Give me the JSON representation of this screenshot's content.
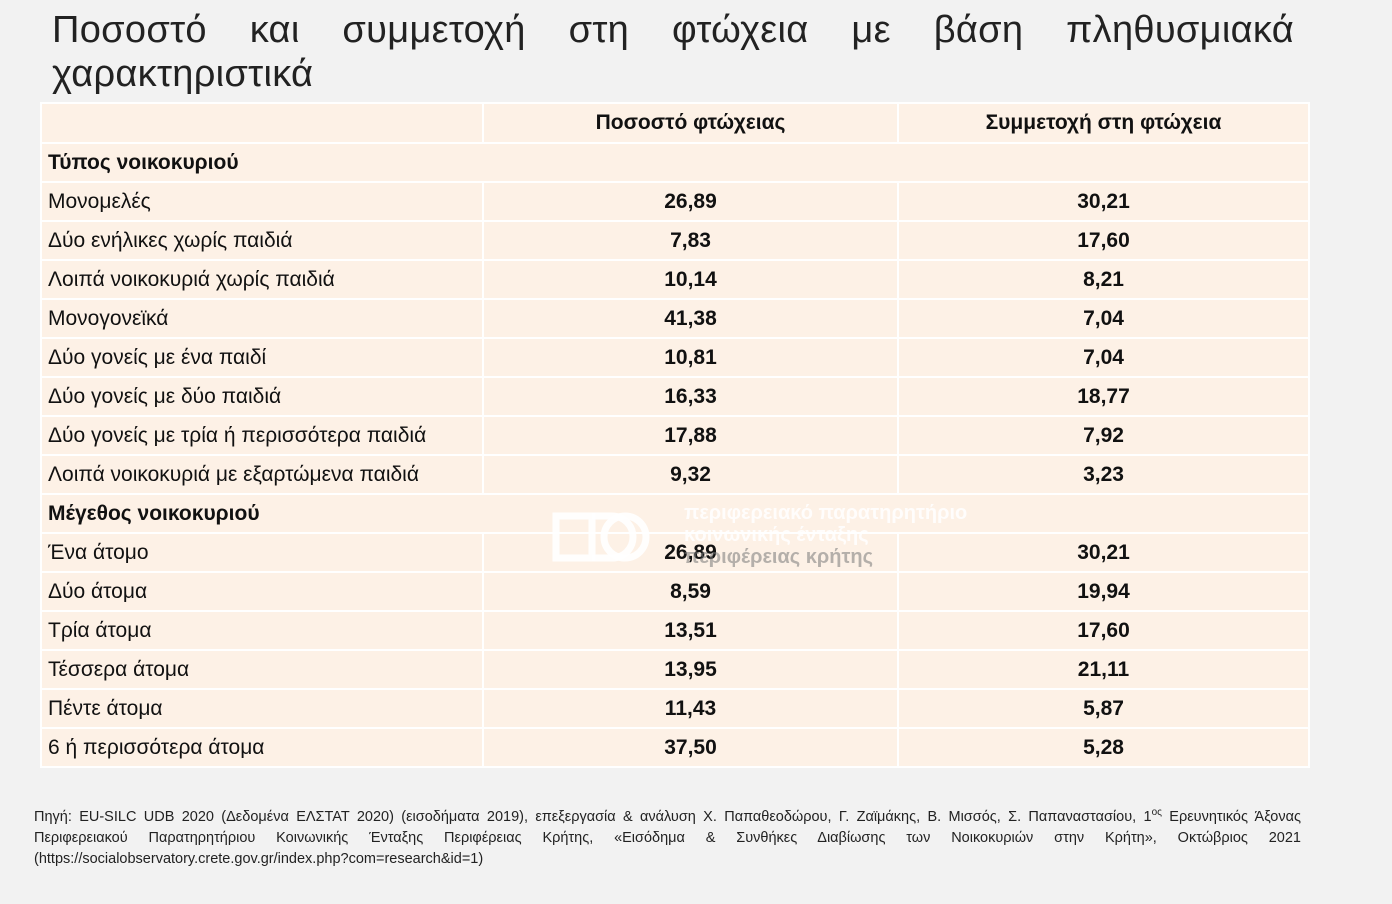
{
  "title": "Ποσοστό και συμμετοχή στη φτώχεια με βάση πληθυσμιακά χαρακτηριστικά",
  "table": {
    "headers": [
      "",
      "Ποσοστό φτώχειας",
      "Συμμετοχή στη φτώχεια"
    ],
    "section_household_type": "Τύπος νοικοκυριού",
    "household_type_rows": [
      {
        "label": "Μονομελές",
        "rate": "26,89",
        "share": "30,21"
      },
      {
        "label": "Δύο ενήλικες χωρίς παιδιά",
        "rate": "7,83",
        "share": "17,60"
      },
      {
        "label": "Λοιπά νοικοκυριά χωρίς παιδιά",
        "rate": "10,14",
        "share": "8,21"
      },
      {
        "label": "Μονογονεϊκά",
        "rate": "41,38",
        "share": "7,04"
      },
      {
        "label": "Δύο γονείς με ένα παιδί",
        "rate": "10,81",
        "share": "7,04"
      },
      {
        "label": "Δύο γονείς με δύο παιδιά",
        "rate": "16,33",
        "share": "18,77"
      },
      {
        "label": "Δύο γονείς με τρία ή περισσότερα παιδιά",
        "rate": "17,88",
        "share": "7,92"
      },
      {
        "label": "Λοιπά νοικοκυριά με εξαρτώμενα παιδιά",
        "rate": "9,32",
        "share": "3,23"
      }
    ],
    "section_household_size": "Μέγεθος νοικοκυριού",
    "household_size_rows": [
      {
        "label": "Ένα άτομο",
        "rate": "26,89",
        "share": "30,21"
      },
      {
        "label": "Δύο άτομα",
        "rate": "8,59",
        "share": "19,94"
      },
      {
        "label": "Τρία άτομα",
        "rate": "13,51",
        "share": "17,60"
      },
      {
        "label": "Τέσσερα άτομα",
        "rate": "13,95",
        "share": "21,11"
      },
      {
        "label": "Πέντε άτομα",
        "rate": "11,43",
        "share": "5,87"
      },
      {
        "label": "6 ή περισσότερα άτομα",
        "rate": "37,50",
        "share": "5,28"
      }
    ]
  },
  "watermark": {
    "line1": "περιφερειακό παρατηρητήριο",
    "line2": "κοινωνικής ένταξης",
    "line3": "περιφέρειας κρήτης"
  },
  "source": {
    "text_before_sup": "Πηγή: EU-SILC UDB 2020 (Δεδομένα ΕΛΣΤΑΤ 2020) (εισοδήματα 2019), επεξεργασία & ανάλυση Χ. Παπαθεοδώρου, Γ. Ζαϊμάκης, Β. Μισσός, Σ. Παπαναστασίου, 1",
    "sup": "ος",
    "text_after_sup": " Ερευνητικός Άξονας Περιφερειακού Παρατηρητήριου Κοινωνικής Ένταξης Περιφέρειας Κρήτης, «Εισόδημα & Συνθήκες Διαβίωσης των Νοικοκυριών στην Κρήτη», Οκτώβριος 2021 (https://socialobservatory.crete.gov.gr/index.php?com=research&id=1)"
  }
}
